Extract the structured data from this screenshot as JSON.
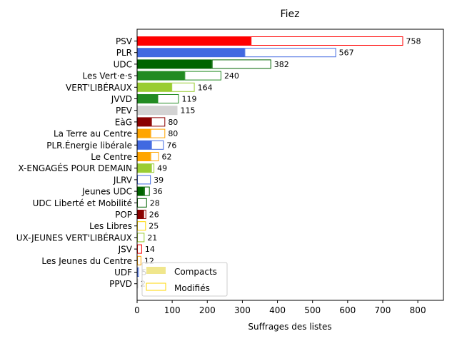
{
  "chart_data": {
    "type": "bar",
    "orientation": "horizontal",
    "title": "Fiez",
    "xlabel": "Suffrages des listes",
    "ylabel": "",
    "xlim": [
      0,
      873
    ],
    "xticks": [
      0,
      100,
      200,
      300,
      400,
      500,
      600,
      700,
      800
    ],
    "grid": false,
    "legend_position": "lower-left",
    "legend": [
      {
        "name": "Compacts",
        "style": "filled",
        "color": "#f0e68c"
      },
      {
        "name": "Modifiés",
        "style": "outline",
        "color": "#ffd700"
      }
    ],
    "categories": [
      "PSV",
      "PLR",
      "UDC",
      "Les Vert·e·s",
      "VERT'LIBÉRAUX",
      "JVVD",
      "PEV",
      "EàG",
      "La Terre au Centre",
      "PLR.Énergie libérale",
      "Le Centre",
      "X-ENGAGÉS POUR DEMAIN",
      "JLRV",
      "Jeunes UDC",
      "UDC Liberté et Mobilité",
      "POP",
      "Les Libres",
      "UX-JEUNES VERT'LIBÉRAUX",
      "JSV",
      "Les Jeunes du Centre",
      "UDF",
      "PPVD"
    ],
    "series": [
      {
        "name": "Compacts",
        "values": [
          324,
          306,
          213,
          135,
          98,
          58,
          115,
          40,
          38,
          40,
          38,
          40,
          0,
          20,
          0,
          18,
          0,
          0,
          0,
          0,
          0,
          0
        ]
      },
      {
        "name": "Modifiés",
        "values": [
          434,
          261,
          169,
          105,
          66,
          61,
          0,
          40,
          42,
          36,
          24,
          9,
          39,
          16,
          28,
          8,
          25,
          21,
          14,
          12,
          5,
          2
        ]
      }
    ],
    "totals": [
      758,
      567,
      382,
      240,
      164,
      119,
      115,
      80,
      80,
      76,
      62,
      49,
      39,
      36,
      28,
      26,
      25,
      21,
      14,
      12,
      5,
      2
    ],
    "total_labels": [
      "758",
      "567",
      "382",
      "240",
      "164",
      "119",
      "115",
      "80",
      "80",
      "76",
      "62",
      "49",
      "39",
      "36",
      "28",
      "26",
      "25",
      "21",
      "14",
      "12",
      "5",
      "2"
    ],
    "colors": [
      "#ff0000",
      "#4169e1",
      "#006400",
      "#228b22",
      "#9acd32",
      "#228b22",
      "#d3d3d3",
      "#8b0000",
      "#ffa500",
      "#4169e1",
      "#ffa500",
      "#9acd32",
      "#4169e1",
      "#006400",
      "#006400",
      "#8b0000",
      "#ffd700",
      "#9acd32",
      "#ff0000",
      "#ffa500",
      "#4169e1",
      "#d3d3d3"
    ]
  }
}
